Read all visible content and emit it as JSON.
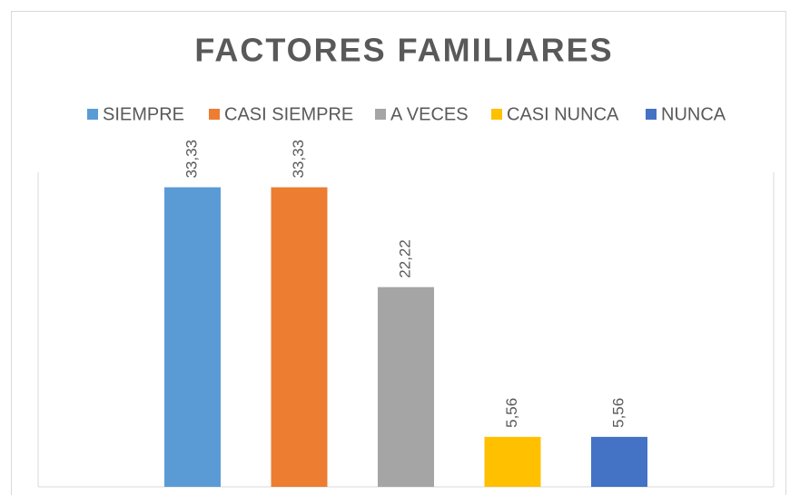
{
  "chart_data": {
    "type": "bar",
    "title": "FACTORES FAMILIARES",
    "series": [
      {
        "name": "SIEMPRE",
        "color": "#5b9bd5",
        "values": [
          33.33
        ],
        "value_labels": [
          "33,33"
        ]
      },
      {
        "name": "CASI SIEMPRE",
        "color": "#ed7d31",
        "values": [
          33.33
        ],
        "value_labels": [
          "33,33"
        ]
      },
      {
        "name": "A VECES",
        "color": "#a5a5a5",
        "values": [
          22.22
        ],
        "value_labels": [
          "22,22"
        ]
      },
      {
        "name": "CASI NUNCA",
        "color": "#ffc000",
        "values": [
          5.56
        ],
        "value_labels": [
          "5,56"
        ]
      },
      {
        "name": "NUNCA",
        "color": "#4472c4",
        "values": [
          5.56
        ],
        "value_labels": [
          "5,56"
        ]
      }
    ],
    "ylim": [
      0,
      35
    ],
    "legend": "top"
  }
}
